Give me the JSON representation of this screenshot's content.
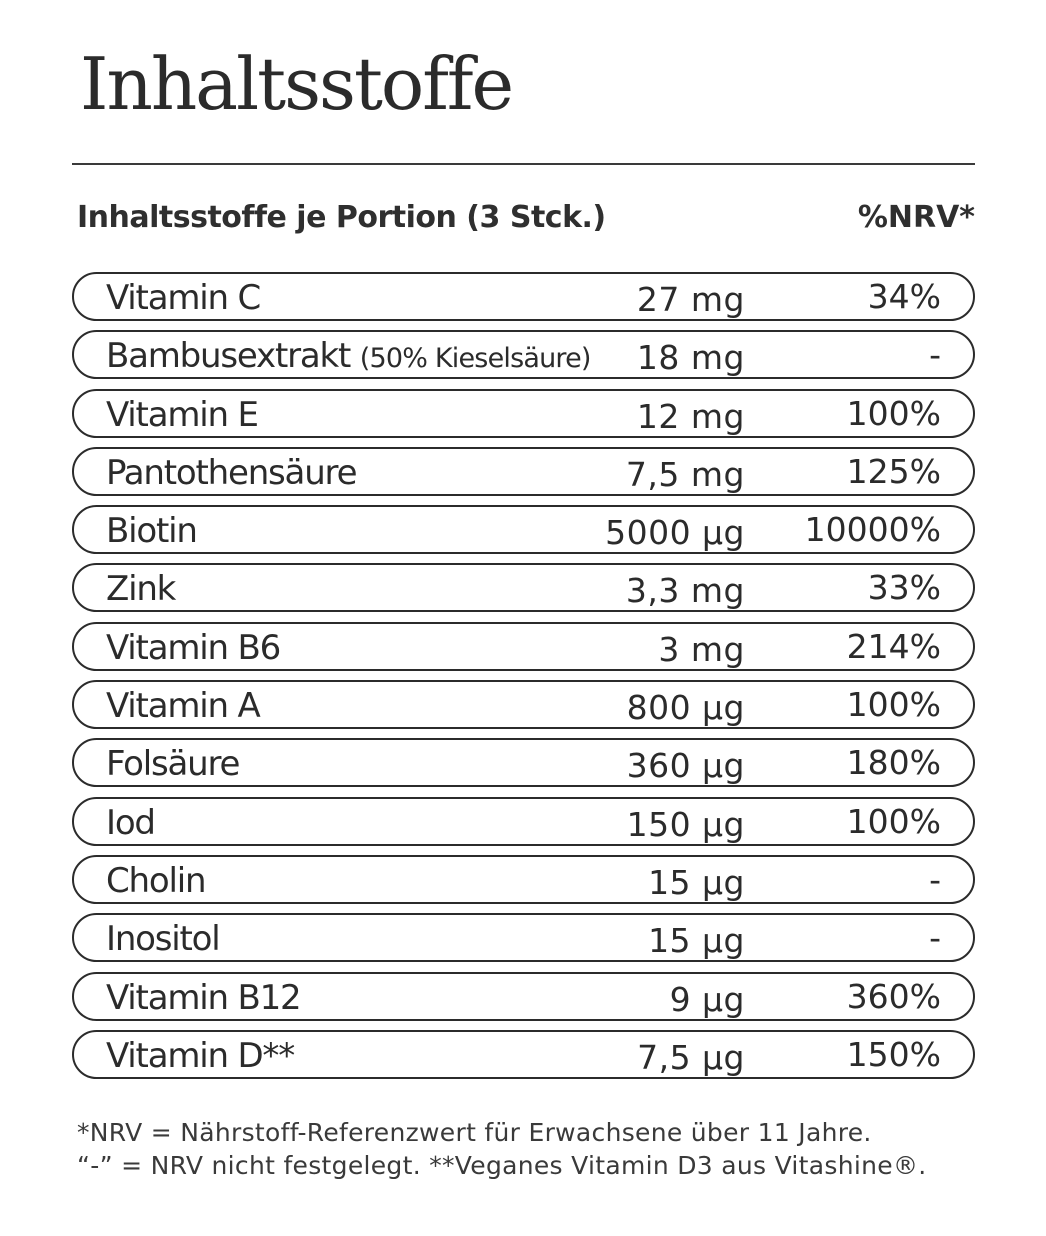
{
  "title": "Inhaltsstoffe",
  "table": {
    "header_label": "Inhaltsstoffe je Portion (3 Stck.)",
    "header_nrv": "%NRV*",
    "rows": [
      {
        "name": "Vitamin C",
        "note": "",
        "amount": "27 mg",
        "nrv": "34%"
      },
      {
        "name": "Bambusextrakt",
        "note": "(50% Kieselsäure)",
        "amount": "18 mg",
        "nrv": "-"
      },
      {
        "name": "Vitamin E",
        "note": "",
        "amount": "12 mg",
        "nrv": "100%"
      },
      {
        "name": "Pantothensäure",
        "note": "",
        "amount": "7,5 mg",
        "nrv": "125%"
      },
      {
        "name": "Biotin",
        "note": "",
        "amount": "5000 µg",
        "nrv": "10000%"
      },
      {
        "name": "Zink",
        "note": "",
        "amount": "3,3 mg",
        "nrv": "33%"
      },
      {
        "name": "Vitamin B6",
        "note": "",
        "amount": "3 mg",
        "nrv": "214%"
      },
      {
        "name": "Vitamin A",
        "note": "",
        "amount": "800 µg",
        "nrv": "100%"
      },
      {
        "name": "Folsäure",
        "note": "",
        "amount": "360 µg",
        "nrv": "180%"
      },
      {
        "name": "Iod",
        "note": "",
        "amount": "150 µg",
        "nrv": "100%"
      },
      {
        "name": "Cholin",
        "note": "",
        "amount": "15 µg",
        "nrv": "-"
      },
      {
        "name": "Inositol",
        "note": "",
        "amount": "15 µg",
        "nrv": "-"
      },
      {
        "name": "Vitamin B12",
        "note": "",
        "amount": "9 µg",
        "nrv": "360%"
      },
      {
        "name": "Vitamin D**",
        "note": "",
        "amount": "7,5 µg",
        "nrv": "150%"
      }
    ]
  },
  "footnotes": [
    "*NRV = Nährstoff-Referenzwert für Erwachsene über 11 Jahre.",
    "“-” = NRV nicht festgelegt. **Veganes Vitamin D3 aus Vitashine®."
  ]
}
